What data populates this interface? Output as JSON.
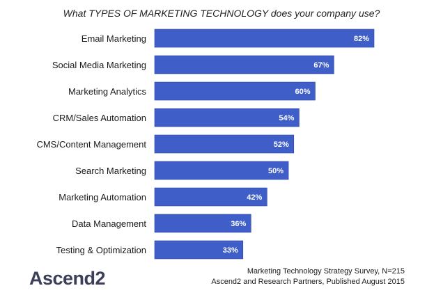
{
  "chart_data": {
    "type": "bar",
    "orientation": "horizontal",
    "title": "What TYPES OF MARKETING TECHNOLOGY does your company use?",
    "categories": [
      "Email Marketing",
      "Social Media Marketing",
      "Marketing Analytics",
      "CRM/Sales Automation",
      "CMS/Content Management",
      "Search Marketing",
      "Marketing Automation",
      "Data Management",
      "Testing & Optimization"
    ],
    "values": [
      82,
      67,
      60,
      54,
      52,
      50,
      42,
      36,
      33
    ],
    "value_labels": [
      "82%",
      "67%",
      "60%",
      "54%",
      "52%",
      "50%",
      "42%",
      "36%",
      "33%"
    ],
    "unit": "%",
    "xlim": [
      0,
      100
    ],
    "grid": false,
    "legend": "none",
    "xlabel": "",
    "ylabel": ""
  },
  "colors": {
    "bar": "#3f5ec8",
    "bar_edge": "#2c46a3"
  },
  "footer": {
    "logo_text": "Ascend2",
    "source_line_1": "Marketing Technology Strategy Survey, N=215",
    "source_line_2": "Ascend2 and Research Partners, Published August 2015"
  }
}
